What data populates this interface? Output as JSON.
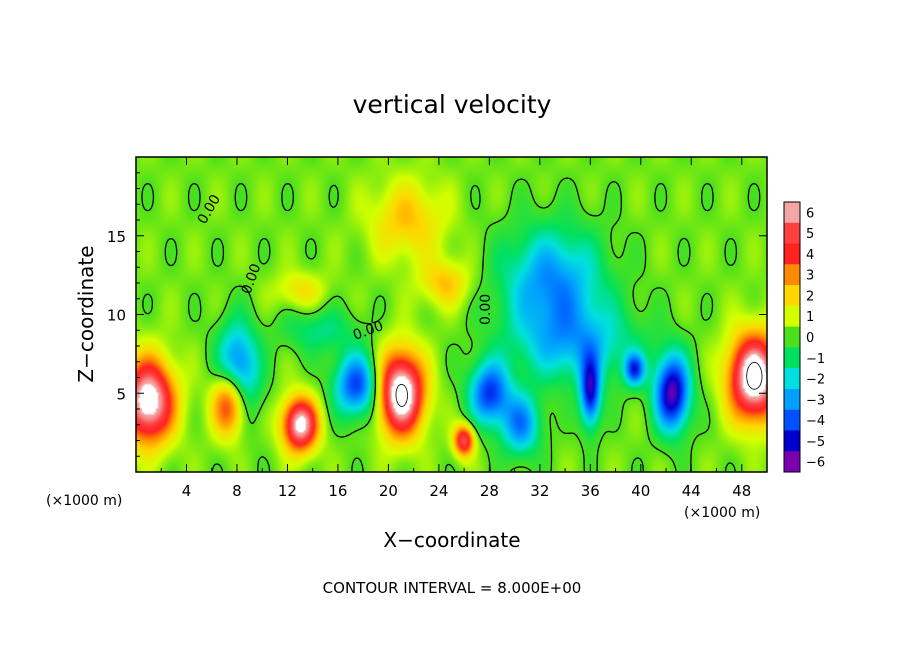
{
  "chart_data": {
    "type": "heatmap",
    "title": "vertical velocity",
    "xlabel": "X−coordinate",
    "ylabel": "Z−coordinate",
    "x_unit_left": "(×1000 m)",
    "x_unit_right": "(×1000 m)",
    "footer": "CONTOUR INTERVAL = 8.000E+00",
    "xlim": [
      0,
      50
    ],
    "ylim": [
      0,
      20
    ],
    "x_ticks": [
      "4",
      "8",
      "12",
      "16",
      "20",
      "24",
      "28",
      "32",
      "36",
      "40",
      "44",
      "48"
    ],
    "y_ticks": [
      "5",
      "10",
      "15"
    ],
    "colorbar": {
      "range": [
        -6,
        6
      ],
      "ticks": [
        "6",
        "5",
        "4",
        "3",
        "2",
        "1",
        "0",
        "−1",
        "−2",
        "−3",
        "−4",
        "−5",
        "−6"
      ],
      "colors": [
        "#f4a6a6",
        "#ff4040",
        "#ff2020",
        "#ff8c00",
        "#ffd700",
        "#d4ff00",
        "#4ce01c",
        "#00e060",
        "#00e0e0",
        "#00a0ff",
        "#0050ff",
        "#0000cc",
        "#7a00b0"
      ]
    },
    "contour_labels": [
      "0.00",
      "0.00",
      "0.00",
      "0.00"
    ],
    "features": [
      {
        "x": 1.0,
        "z": 4.5,
        "w": 7.0,
        "sx": 2.0,
        "sz": 2.6
      },
      {
        "x": 7.5,
        "z": 4.5,
        "w": 6.5,
        "sx": 1.4,
        "sz": 2.2
      },
      {
        "x": 13.0,
        "z": 3.0,
        "w": 6.5,
        "sx": 1.4,
        "sz": 1.7
      },
      {
        "x": 21.0,
        "z": 5.0,
        "w": 7.5,
        "sx": 1.8,
        "sz": 2.6
      },
      {
        "x": 26.0,
        "z": 2.0,
        "w": 5.0,
        "sx": 0.8,
        "sz": 1.0
      },
      {
        "x": 49.0,
        "z": 6.0,
        "w": 7.5,
        "sx": 2.0,
        "sz": 2.7
      },
      {
        "x": 21.5,
        "z": 16.0,
        "w": 2.0,
        "sx": 3.0,
        "sz": 2.5
      },
      {
        "x": 13.0,
        "z": 11.5,
        "w": 1.5,
        "sx": 2.0,
        "sz": 1.2
      },
      {
        "x": 24.5,
        "z": 12.0,
        "w": 2.0,
        "sx": 2.0,
        "sz": 1.5
      },
      {
        "x": 8.0,
        "z": 6.0,
        "w": -5.5,
        "sx": 1.6,
        "sz": 3.0
      },
      {
        "x": 17.5,
        "z": 5.5,
        "w": -4.5,
        "sx": 1.8,
        "sz": 2.0
      },
      {
        "x": 28.0,
        "z": 5.0,
        "w": -4.5,
        "sx": 1.6,
        "sz": 2.0
      },
      {
        "x": 33.0,
        "z": 12.0,
        "w": -3.5,
        "sx": 4.0,
        "sz": 3.5
      },
      {
        "x": 30.5,
        "z": 3.0,
        "w": -3.5,
        "sx": 1.6,
        "sz": 2.0
      },
      {
        "x": 36.0,
        "z": 5.0,
        "w": -5.0,
        "sx": 0.8,
        "sz": 2.2
      },
      {
        "x": 42.5,
        "z": 5.0,
        "w": -6.0,
        "sx": 1.4,
        "sz": 2.4
      },
      {
        "x": 39.5,
        "z": 6.5,
        "w": -4.0,
        "sx": 0.8,
        "sz": 1.0
      },
      {
        "x": 35.0,
        "z": 8.0,
        "w": -2.5,
        "sx": 5.0,
        "sz": 2.5
      },
      {
        "x": 14.5,
        "z": 9.0,
        "w": -1.5,
        "sx": 3.0,
        "sz": 1.5
      }
    ]
  }
}
